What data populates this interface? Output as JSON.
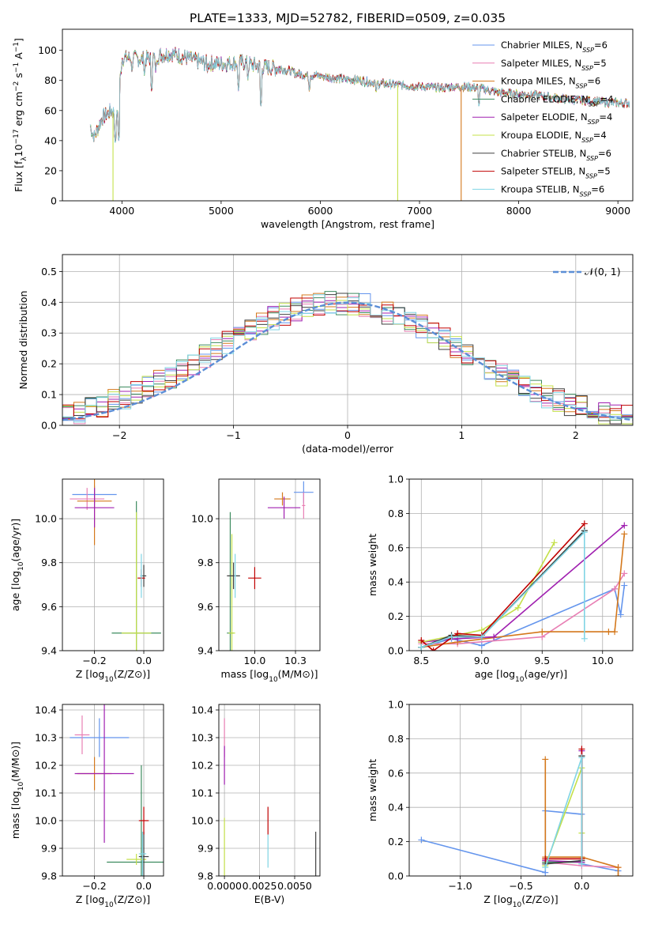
{
  "figure": {
    "title": "PLATE=1333, MJD=52782, FIBERID=0509, z=0.035"
  },
  "models": [
    {
      "name": "Chabrier MILES",
      "nssp": "6",
      "color": "#6495ed"
    },
    {
      "name": "Salpeter MILES",
      "nssp": "5",
      "color": "#e87fb4"
    },
    {
      "name": "Kroupa MILES",
      "nssp": "6",
      "color": "#d4781c"
    },
    {
      "name": "Chabrier ELODIE",
      "nssp": "4",
      "color": "#3d8b5f"
    },
    {
      "name": "Salpeter ELODIE",
      "nssp": "4",
      "color": "#a020b0"
    },
    {
      "name": "Kroupa ELODIE",
      "nssp": "4",
      "color": "#c4e04a"
    },
    {
      "name": "Chabrier STELIB",
      "nssp": "6",
      "color": "#404040"
    },
    {
      "name": "Salpeter STELIB",
      "nssp": "5",
      "color": "#c00000"
    },
    {
      "name": "Kroupa STELIB",
      "nssp": "6",
      "color": "#7fd4e4"
    }
  ],
  "chart_data": [
    {
      "id": "spectrum",
      "type": "line",
      "xlabel": "wavelength [Angstrom, rest frame]",
      "ylabel": "Flux [f_λ 10^-17 erg cm^-2 s^-1 A^-1]",
      "xlim": [
        3400,
        9150
      ],
      "ylim": [
        0,
        114
      ],
      "xticks": [
        4000,
        5000,
        6000,
        7000,
        8000,
        9000
      ],
      "yticks": [
        0,
        20,
        40,
        60,
        80,
        100
      ],
      "legend": "upper-right",
      "envelope": [
        [
          3680,
          50
        ],
        [
          3720,
          42
        ],
        [
          3800,
          55
        ],
        [
          3900,
          60
        ],
        [
          3950,
          55
        ],
        [
          4000,
          95
        ],
        [
          4100,
          95
        ],
        [
          4200,
          94
        ],
        [
          4300,
          95
        ],
        [
          4400,
          97
        ],
        [
          4500,
          98
        ],
        [
          4600,
          96
        ],
        [
          4800,
          92
        ],
        [
          5000,
          91
        ],
        [
          5200,
          92
        ],
        [
          5400,
          89
        ],
        [
          5600,
          88
        ],
        [
          5800,
          84
        ],
        [
          6000,
          83
        ],
        [
          6200,
          81
        ],
        [
          6400,
          80
        ],
        [
          6600,
          78
        ],
        [
          6800,
          77
        ],
        [
          7000,
          76
        ],
        [
          7200,
          75
        ],
        [
          7400,
          76
        ],
        [
          7600,
          75
        ],
        [
          7800,
          72
        ],
        [
          8000,
          71
        ],
        [
          8200,
          70
        ],
        [
          8400,
          68
        ],
        [
          8600,
          67
        ],
        [
          8800,
          66
        ],
        [
          9000,
          65
        ],
        [
          9100,
          65
        ]
      ],
      "absorption": [
        [
          3934,
          38
        ],
        [
          3969,
          40
        ],
        [
          4102,
          85
        ],
        [
          4227,
          83
        ],
        [
          4300,
          72
        ],
        [
          4340,
          86
        ],
        [
          4861,
          85
        ],
        [
          5175,
          73
        ],
        [
          5269,
          80
        ],
        [
          5400,
          62
        ],
        [
          5890,
          72
        ],
        [
          6563,
          71
        ],
        [
          7600,
          62
        ]
      ],
      "dropouts": [
        [
          3910,
          "#c4e04a"
        ],
        [
          6780,
          "#c4e04a"
        ],
        [
          7420,
          "#d4781c"
        ]
      ]
    },
    {
      "id": "residuals",
      "type": "step",
      "xlabel": "(data-model)/error",
      "ylabel": "Normed distribution",
      "xlim": [
        -2.5,
        2.5
      ],
      "ylim": [
        0,
        0.555
      ],
      "xticks": [
        -2,
        -1,
        0,
        1,
        2
      ],
      "yticks": [
        0,
        0.1,
        0.2,
        0.3,
        0.4,
        0.5
      ],
      "bin_width": 0.1,
      "reference": {
        "label": "𝒩(0, 1)",
        "mean": 0,
        "sigma": 1,
        "color": "#5b8ed6"
      }
    },
    {
      "id": "age-vs-Z",
      "type": "errorbar",
      "xlabel": "Z [log10(Z/Z⊙)]",
      "ylabel": "age  [log10(age/yr)]",
      "xlim": [
        -0.33,
        0.08
      ],
      "ylim": [
        9.4,
        10.18
      ],
      "xticks": [
        -0.2,
        0.0
      ],
      "yticks": [
        9.4,
        9.6,
        9.8,
        10.0
      ],
      "points": [
        {
          "x": -0.2,
          "y": 10.11,
          "xerr": 0.09,
          "yerr": 0.04,
          "m": 0
        },
        {
          "x": -0.23,
          "y": 10.09,
          "xerr": 0.07,
          "yerr": 0.05,
          "m": 1
        },
        {
          "x": -0.2,
          "y": 10.08,
          "xerr": 0.07,
          "yerr": 0.2,
          "m": 2
        },
        {
          "x": -0.03,
          "y": 9.48,
          "xerr": 0.1,
          "yerr": 0.6,
          "m": 3
        },
        {
          "x": -0.2,
          "y": 10.05,
          "xerr": 0.08,
          "yerr": 0.09,
          "m": 4
        },
        {
          "x": -0.03,
          "y": 9.48,
          "xerr": 0.06,
          "yerr": 0.55,
          "m": 5
        },
        {
          "x": 0.0,
          "y": 9.74,
          "xerr": 0.01,
          "yerr": 0.05,
          "m": 6
        },
        {
          "x": -0.01,
          "y": 9.73,
          "xerr": 0.015,
          "yerr": 0.04,
          "m": 7
        },
        {
          "x": -0.01,
          "y": 9.74,
          "xerr": 0.005,
          "yerr": 0.1,
          "m": 8
        }
      ]
    },
    {
      "id": "age-vs-mass",
      "type": "errorbar",
      "xlabel": "mass [log10(M/M⊙)]",
      "ylabel": "",
      "xlim": [
        9.78,
        10.4
      ],
      "ylim": [
        9.4,
        10.18
      ],
      "xticks": [
        10.0,
        10.25
      ],
      "yticks": [
        9.4,
        9.6,
        9.8,
        10.0
      ],
      "points": [
        {
          "x": 10.3,
          "y": 10.12,
          "xerr": 0.06,
          "yerr": 0.05,
          "m": 0
        },
        {
          "x": 10.3,
          "y": 10.06,
          "xerr": 0.01,
          "yerr": 0.06,
          "m": 1
        },
        {
          "x": 10.17,
          "y": 10.09,
          "xerr": 0.05,
          "yerr": 0.03,
          "m": 2
        },
        {
          "x": 9.85,
          "y": 9.48,
          "xerr": 0.02,
          "yerr": 0.55,
          "m": 3
        },
        {
          "x": 10.18,
          "y": 10.05,
          "xerr": 0.1,
          "yerr": 0.05,
          "m": 4
        },
        {
          "x": 9.86,
          "y": 9.48,
          "xerr": 0.02,
          "yerr": 0.45,
          "m": 5
        },
        {
          "x": 9.87,
          "y": 9.74,
          "xerr": 0.04,
          "yerr": 0.06,
          "m": 6
        },
        {
          "x": 10.0,
          "y": 9.73,
          "xerr": 0.04,
          "yerr": 0.05,
          "m": 7
        },
        {
          "x": 9.88,
          "y": 9.74,
          "xerr": 0.005,
          "yerr": 0.1,
          "m": 8
        }
      ]
    },
    {
      "id": "weight-vs-age",
      "type": "line",
      "xlabel": "age  [log10(age/yr)]",
      "ylabel": "mass weight",
      "xlim": [
        8.4,
        10.25
      ],
      "ylim": [
        0,
        1.0
      ],
      "xticks": [
        8.5,
        9.0,
        9.5,
        10.0
      ],
      "yticks": [
        0,
        0.2,
        0.4,
        0.6,
        0.8,
        1.0
      ],
      "series": [
        {
          "m": 0,
          "x": [
            8.5,
            8.75,
            9.0,
            10.1,
            10.15,
            10.18
          ],
          "y": [
            0.02,
            0.07,
            0.03,
            0.36,
            0.21,
            0.38
          ]
        },
        {
          "m": 1,
          "x": [
            8.5,
            8.8,
            9.5,
            10.1,
            10.18
          ],
          "y": [
            0.04,
            0.04,
            0.08,
            0.36,
            0.45
          ]
        },
        {
          "m": 2,
          "x": [
            8.5,
            8.8,
            9.5,
            10.05,
            10.1,
            10.18
          ],
          "y": [
            0.02,
            0.05,
            0.11,
            0.11,
            0.11,
            0.68
          ]
        },
        {
          "m": 3,
          "x": [
            8.5,
            8.75,
            9.0,
            9.85
          ],
          "y": [
            0.02,
            0.08,
            0.08,
            0.7
          ]
        },
        {
          "m": 4,
          "x": [
            8.5,
            8.8,
            9.1,
            10.18
          ],
          "y": [
            0.05,
            0.07,
            0.08,
            0.73
          ]
        },
        {
          "m": 5,
          "x": [
            8.5,
            9.0,
            9.3,
            9.6
          ],
          "y": [
            0.05,
            0.12,
            0.25,
            0.63
          ]
        },
        {
          "m": 6,
          "x": [
            8.5,
            8.75,
            9.0,
            9.85
          ],
          "y": [
            0.02,
            0.09,
            0.08,
            0.7
          ]
        },
        {
          "m": 7,
          "x": [
            8.5,
            8.6,
            8.8,
            9.0,
            9.85
          ],
          "y": [
            0.06,
            0.0,
            0.1,
            0.09,
            0.74
          ]
        },
        {
          "m": 8,
          "x": [
            8.5,
            8.75,
            9.0,
            9.85,
            9.85
          ],
          "y": [
            0.02,
            0.08,
            0.08,
            0.69,
            0.07
          ]
        }
      ]
    },
    {
      "id": "mass-vs-Z",
      "type": "errorbar",
      "xlabel": "Z [log10(Z/Z⊙)]",
      "ylabel": "mass [log10(M/M⊙)]",
      "xlim": [
        -0.33,
        0.08
      ],
      "ylim": [
        9.8,
        10.42
      ],
      "xticks": [
        -0.2,
        0.0
      ],
      "yticks": [
        9.8,
        9.9,
        10.0,
        10.1,
        10.2,
        10.3,
        10.4
      ],
      "points": [
        {
          "x": -0.18,
          "y": 10.3,
          "xerr": 0.12,
          "yerr": 0.07,
          "m": 0
        },
        {
          "x": -0.25,
          "y": 10.31,
          "xerr": 0.03,
          "yerr": 0.07,
          "m": 1
        },
        {
          "x": -0.2,
          "y": 10.17,
          "xerr": 0.07,
          "yerr": 0.06,
          "m": 2
        },
        {
          "x": -0.01,
          "y": 9.85,
          "xerr": 0.14,
          "yerr": 0.35,
          "m": 3
        },
        {
          "x": -0.16,
          "y": 10.17,
          "xerr": 0.12,
          "yerr": 0.25,
          "m": 4
        },
        {
          "x": -0.03,
          "y": 9.86,
          "xerr": 0.04,
          "yerr": 0.02,
          "m": 5
        },
        {
          "x": 0.0,
          "y": 9.87,
          "xerr": 0.02,
          "yerr": 0.09,
          "m": 6
        },
        {
          "x": 0.0,
          "y": 10.0,
          "xerr": 0.02,
          "yerr": 0.05,
          "m": 7
        },
        {
          "x": -0.005,
          "y": 9.88,
          "xerr": 0.015,
          "yerr": 0.08,
          "m": 8
        }
      ]
    },
    {
      "id": "mass-vs-EBV",
      "type": "errorbar",
      "xlabel": "E(B-V)",
      "ylabel": "",
      "xlim": [
        -0.0004,
        0.0068
      ],
      "ylim": [
        9.8,
        10.42
      ],
      "xticks": [
        0.0,
        0.0025,
        0.005
      ],
      "yticks": [
        9.8,
        9.9,
        10.0,
        10.1,
        10.2,
        10.3,
        10.4
      ],
      "points": [
        {
          "x": 0.0,
          "y": 10.3,
          "xerr": 0,
          "yerr": 0.07,
          "m": 1
        },
        {
          "x": 0.0,
          "y": 10.2,
          "xerr": 0,
          "yerr": 0.07,
          "m": 4
        },
        {
          "x": 0.0,
          "y": 9.9,
          "xerr": 0,
          "yerr": 0.11,
          "m": 5
        },
        {
          "x": 0.0065,
          "y": 9.87,
          "xerr": 0,
          "yerr": 0.09,
          "m": 6
        },
        {
          "x": 0.0031,
          "y": 10.0,
          "xerr": 0,
          "yerr": 0.05,
          "m": 7
        },
        {
          "x": 0.0031,
          "y": 9.89,
          "xerr": 0,
          "yerr": 0.06,
          "m": 8
        }
      ]
    },
    {
      "id": "weight-vs-Z",
      "type": "line",
      "xlabel": "Z [log10(Z/Z⊙)]",
      "ylabel": "mass weight",
      "xlim": [
        -1.42,
        0.42
      ],
      "ylim": [
        0,
        1.0
      ],
      "xticks": [
        -1.0,
        -0.5,
        0.0
      ],
      "yticks": [
        0,
        0.2,
        0.4,
        0.6,
        0.8,
        1.0
      ],
      "series": [
        {
          "m": 0,
          "x": [
            -1.32,
            -0.3,
            -0.3,
            0.0,
            0.0,
            0.3
          ],
          "y": [
            0.21,
            0.02,
            0.38,
            0.36,
            0.07,
            0.03
          ]
        },
        {
          "m": 1,
          "x": [
            -0.3,
            -0.3,
            0.0,
            0.3
          ],
          "y": [
            0.09,
            0.08,
            0.06,
            0.05
          ]
        },
        {
          "m": 2,
          "x": [
            -0.3,
            -0.3,
            0.0,
            0.3,
            0.3
          ],
          "y": [
            0.68,
            0.11,
            0.11,
            0.05,
            0.0
          ]
        },
        {
          "m": 3,
          "x": [
            -0.3,
            0.0,
            0.0
          ],
          "y": [
            0.08,
            0.08,
            0.7
          ]
        },
        {
          "m": 4,
          "x": [
            -0.3,
            0.0,
            0.0
          ],
          "y": [
            0.09,
            0.08,
            0.73
          ]
        },
        {
          "m": 5,
          "x": [
            -0.3,
            0.0,
            0.0
          ],
          "y": [
            0.06,
            0.63,
            0.25
          ]
        },
        {
          "m": 6,
          "x": [
            -0.3,
            0.0,
            0.0
          ],
          "y": [
            0.07,
            0.09,
            0.7
          ]
        },
        {
          "m": 7,
          "x": [
            -0.3,
            0.0,
            0.0
          ],
          "y": [
            0.1,
            0.1,
            0.74
          ]
        },
        {
          "m": 8,
          "x": [
            -0.3,
            0.0,
            0.0
          ],
          "y": [
            0.05,
            0.69,
            0.07
          ]
        }
      ]
    }
  ]
}
